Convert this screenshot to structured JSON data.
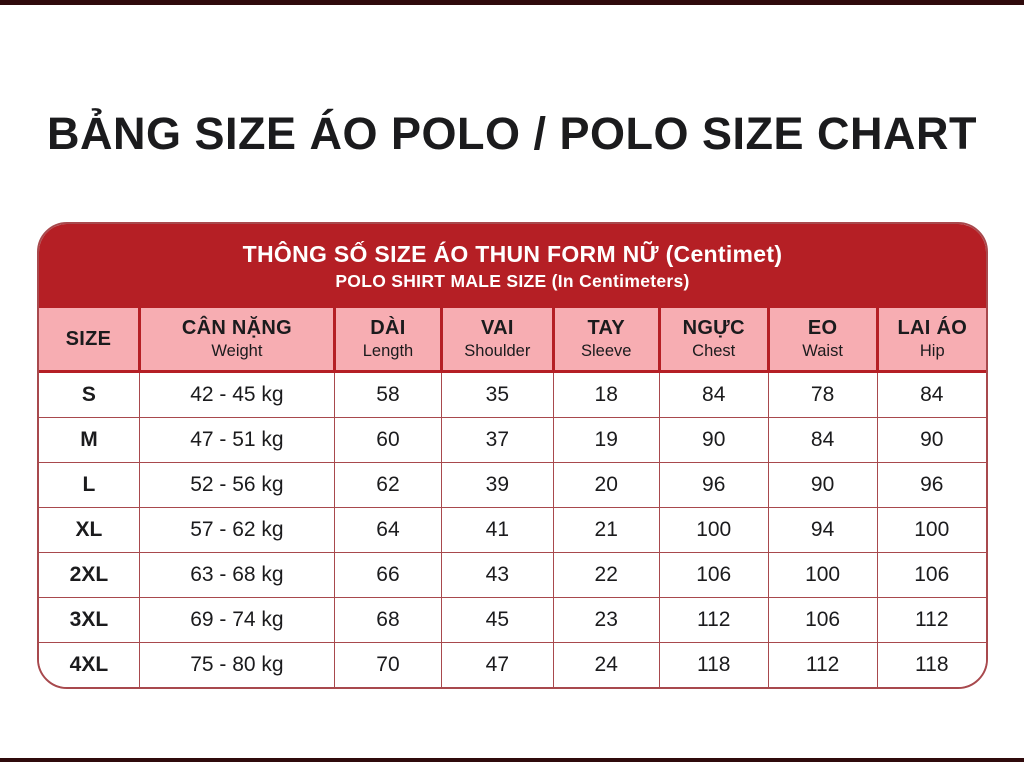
{
  "page": {
    "title": "BẢNG SIZE ÁO POLO / POLO SIZE CHART"
  },
  "banner": {
    "line1": "THÔNG SỐ SIZE ÁO THUN FORM NỮ (Centimet)",
    "line2": "POLO SHIRT MALE SIZE (In Centimeters)"
  },
  "table": {
    "columns": [
      {
        "label": "SIZE",
        "sublabel": ""
      },
      {
        "label": "CÂN NẶNG",
        "sublabel": "Weight"
      },
      {
        "label": "DÀI",
        "sublabel": "Length"
      },
      {
        "label": "VAI",
        "sublabel": "Shoulder"
      },
      {
        "label": "TAY",
        "sublabel": "Sleeve"
      },
      {
        "label": "NGỰC",
        "sublabel": "Chest"
      },
      {
        "label": "EO",
        "sublabel": "Waist"
      },
      {
        "label": "LAI ÁO",
        "sublabel": "Hip"
      }
    ],
    "rows": [
      [
        "S",
        "42 - 45 kg",
        "58",
        "35",
        "18",
        "84",
        "78",
        "84"
      ],
      [
        "M",
        "47 - 51 kg",
        "60",
        "37",
        "19",
        "90",
        "84",
        "90"
      ],
      [
        "L",
        "52 - 56 kg",
        "62",
        "39",
        "20",
        "96",
        "90",
        "96"
      ],
      [
        "XL",
        "57 - 62 kg",
        "64",
        "41",
        "21",
        "100",
        "94",
        "100"
      ],
      [
        "2XL",
        "63 - 68 kg",
        "66",
        "43",
        "22",
        "106",
        "100",
        "106"
      ],
      [
        "3XL",
        "69 - 74 kg",
        "68",
        "45",
        "23",
        "112",
        "106",
        "112"
      ],
      [
        "4XL",
        "75 - 80 kg",
        "70",
        "47",
        "24",
        "118",
        "112",
        "118"
      ]
    ]
  },
  "colors": {
    "band_red": "#B51F25",
    "header_pink": "#F7ADB2",
    "grid_line": "#A8494D",
    "frame_bar": "#2F0A0C",
    "text": "#1B1B1D",
    "banner_text": "#FFFFFF",
    "page_bg": "#FFFFFF"
  }
}
